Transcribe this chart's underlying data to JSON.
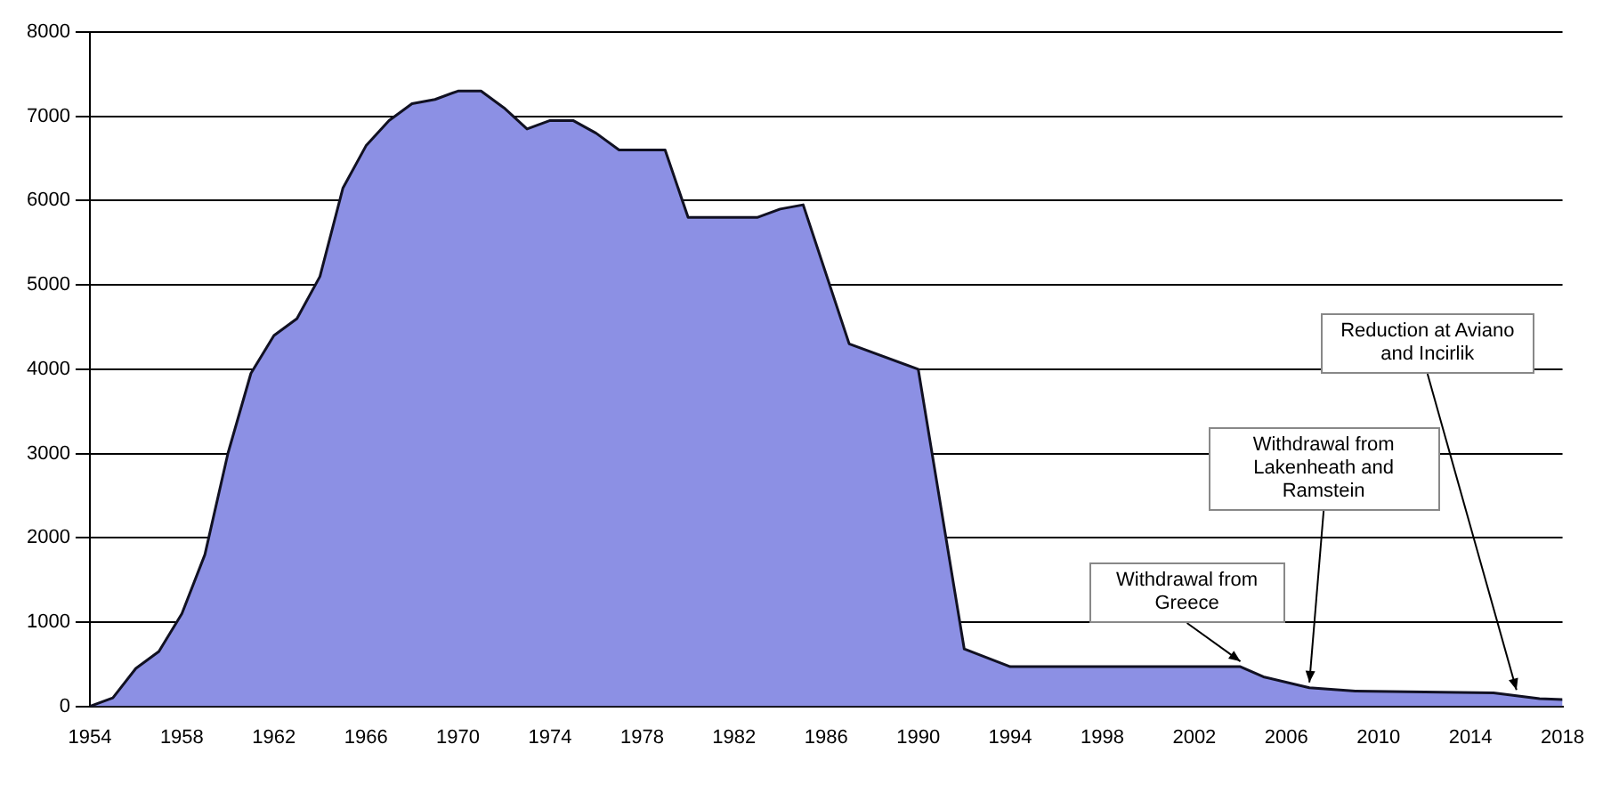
{
  "chart_data": {
    "type": "area",
    "x": [
      1954,
      1955,
      1956,
      1957,
      1958,
      1959,
      1960,
      1961,
      1962,
      1963,
      1964,
      1965,
      1966,
      1967,
      1968,
      1969,
      1970,
      1971,
      1972,
      1973,
      1974,
      1975,
      1976,
      1977,
      1978,
      1979,
      1980,
      1981,
      1982,
      1983,
      1984,
      1985,
      1987,
      1990,
      1992,
      1994,
      2000,
      2004,
      2005,
      2007,
      2009,
      2015,
      2017,
      2018
    ],
    "series": [
      {
        "color": "#8c90e4",
        "values": [
          0,
          100,
          450,
          650,
          1100,
          1800,
          3000,
          3950,
          4400,
          4600,
          5100,
          6150,
          6650,
          6950,
          7150,
          7200,
          7300,
          7300,
          7100,
          6850,
          6950,
          6950,
          6800,
          6600,
          6600,
          6600,
          5800,
          5800,
          5800,
          5800,
          5900,
          5950,
          4300,
          4000,
          680,
          470,
          470,
          470,
          350,
          220,
          180,
          160,
          90,
          80
        ]
      }
    ],
    "xlim": [
      1954,
      2018
    ],
    "xticks": [
      1954,
      1958,
      1962,
      1966,
      1970,
      1974,
      1978,
      1982,
      1986,
      1990,
      1994,
      1998,
      2002,
      2006,
      2010,
      2014,
      2018
    ],
    "ylim": [
      0,
      8000
    ],
    "yticks": [
      0,
      1000,
      2000,
      3000,
      4000,
      5000,
      6000,
      7000,
      8000
    ],
    "grid": "y",
    "legend": false,
    "annotations": [
      {
        "text": "Withdrawal from Greece",
        "x": 2004,
        "y": 470
      },
      {
        "text": "Withdrawal from Lakenheath and Ramstein",
        "x": 2007,
        "y": 220
      },
      {
        "text": "Reduction at Aviano and Incirlik",
        "x": 2016,
        "y": 130
      }
    ]
  }
}
